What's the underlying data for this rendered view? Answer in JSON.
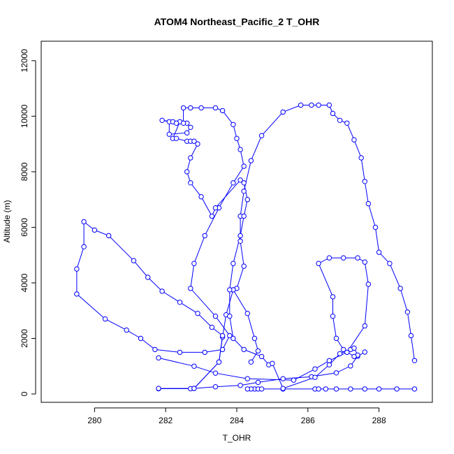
{
  "chart_data": {
    "type": "scatter",
    "title": "ATOM4 Northeast_Pacific_2 T_OHR",
    "xlabel": "T_OHR",
    "ylabel": "Altitude (m)",
    "xlim": [
      278.5,
      289.5
    ],
    "ylim": [
      -300,
      12700
    ],
    "x_ticks": [
      280,
      282,
      284,
      286,
      288
    ],
    "y_ticks": [
      0,
      2000,
      4000,
      6000,
      8000,
      10000,
      12000
    ],
    "marker": "open-circle",
    "connected": true,
    "grid": false,
    "color": "#0000ff",
    "series": [
      {
        "points": [
          [
            284.5,
            180
          ],
          [
            284.4,
            180
          ],
          [
            284.3,
            180
          ],
          [
            284.6,
            180
          ],
          [
            284.7,
            180
          ],
          [
            285.3,
            180
          ],
          [
            286.2,
            180
          ],
          [
            286.3,
            180
          ],
          [
            286.5,
            180
          ],
          [
            286.8,
            180
          ],
          [
            287.2,
            180
          ],
          [
            287.6,
            180
          ],
          [
            288.0,
            180
          ],
          [
            288.5,
            180
          ],
          [
            289.0,
            180
          ]
        ]
      },
      {
        "points": [
          [
            281.8,
            190
          ],
          [
            282.7,
            190
          ],
          [
            283.4,
            260
          ],
          [
            284.1,
            310
          ],
          [
            284.6,
            420
          ],
          [
            285.3,
            550
          ],
          [
            286.1,
            620
          ],
          [
            286.8,
            760
          ],
          [
            287.2,
            1010
          ],
          [
            287.4,
            1360
          ],
          [
            287.6,
            1510
          ]
        ]
      },
      {
        "points": [
          [
            289.0,
            1200
          ],
          [
            288.9,
            2100
          ],
          [
            288.8,
            2950
          ],
          [
            288.6,
            3800
          ],
          [
            288.3,
            4700
          ],
          [
            288.0,
            5100
          ],
          [
            287.9,
            6000
          ],
          [
            287.7,
            6850
          ],
          [
            287.6,
            7650
          ],
          [
            287.5,
            8500
          ],
          [
            287.3,
            9150
          ],
          [
            287.1,
            9750
          ],
          [
            286.9,
            9850
          ],
          [
            286.7,
            10100
          ],
          [
            286.6,
            10400
          ],
          [
            286.3,
            10400
          ],
          [
            286.1,
            10400
          ],
          [
            285.8,
            10400
          ],
          [
            285.3,
            10150
          ],
          [
            284.7,
            9300
          ],
          [
            284.4,
            8400
          ],
          [
            284.2,
            7300
          ],
          [
            284.1,
            6400
          ],
          [
            284.1,
            5500
          ],
          [
            284.2,
            4600
          ],
          [
            284.0,
            3800
          ],
          [
            283.9,
            3750
          ],
          [
            283.7,
            2850
          ],
          [
            283.6,
            2050
          ],
          [
            283.5,
            1150
          ],
          [
            282.8,
            200
          ],
          [
            281.8,
            200
          ]
        ]
      },
      {
        "points": [
          [
            283.9,
            3750
          ],
          [
            284.3,
            2900
          ],
          [
            284.5,
            2000
          ],
          [
            284.6,
            1550
          ],
          [
            284.4,
            1150
          ]
        ]
      }
    ]
  },
  "paths": [
    [
      [
        282.2,
        9200
      ],
      [
        282.4,
        9800
      ],
      [
        282.6,
        9750
      ],
      [
        282.7,
        9600
      ],
      [
        282.6,
        9400
      ],
      [
        282.1,
        9350
      ],
      [
        282.1,
        9800
      ],
      [
        281.9,
        9850
      ],
      [
        282.2,
        9800
      ],
      [
        282.3,
        9750
      ],
      [
        282.5,
        9750
      ],
      [
        282.5,
        10300
      ],
      [
        282.7,
        10300
      ],
      [
        283.0,
        10300
      ],
      [
        283.4,
        10300
      ],
      [
        283.6,
        10200
      ],
      [
        283.9,
        9700
      ],
      [
        284.0,
        9200
      ],
      [
        284.1,
        8800
      ],
      [
        284.2,
        8200
      ],
      [
        283.9,
        7600
      ],
      [
        283.5,
        6700
      ],
      [
        283.1,
        5700
      ],
      [
        282.8,
        4700
      ],
      [
        282.7,
        3800
      ],
      [
        283.4,
        2800
      ],
      [
        283.8,
        2100
      ],
      [
        283.6,
        1600
      ],
      [
        283.1,
        1500
      ],
      [
        282.4,
        1500
      ],
      [
        281.7,
        1600
      ],
      [
        281.3,
        2000
      ],
      [
        280.9,
        2300
      ],
      [
        280.3,
        2700
      ],
      [
        279.5,
        3600
      ],
      [
        279.5,
        4500
      ],
      [
        279.7,
        5300
      ],
      [
        279.7,
        6200
      ],
      [
        280.0,
        5900
      ],
      [
        280.4,
        5700
      ],
      [
        281.1,
        4800
      ],
      [
        281.5,
        4200
      ],
      [
        281.9,
        3700
      ],
      [
        282.4,
        3300
      ],
      [
        282.9,
        2900
      ],
      [
        283.3,
        2400
      ],
      [
        283.6,
        2100
      ],
      [
        283.5,
        1150
      ],
      [
        282.8,
        200
      ]
    ],
    [
      [
        282.3,
        9200
      ],
      [
        282.6,
        9100
      ],
      [
        282.7,
        9100
      ],
      [
        282.8,
        9100
      ],
      [
        282.9,
        9000
      ],
      [
        282.7,
        8500
      ],
      [
        282.6,
        8000
      ],
      [
        282.7,
        7600
      ],
      [
        283.0,
        7100
      ],
      [
        283.3,
        6400
      ],
      [
        283.4,
        6700
      ],
      [
        284.1,
        7700
      ],
      [
        284.2,
        7600
      ],
      [
        284.3,
        7000
      ],
      [
        284.2,
        6400
      ],
      [
        284.1,
        5700
      ],
      [
        283.9,
        4700
      ],
      [
        283.8,
        3750
      ],
      [
        283.8,
        2800
      ],
      [
        283.9,
        2000
      ],
      [
        284.2,
        1600
      ],
      [
        284.7,
        1350
      ],
      [
        284.9,
        1050
      ],
      [
        285.0,
        1100
      ],
      [
        285.3,
        200
      ],
      [
        286.2,
        600
      ],
      [
        286.6,
        1050
      ],
      [
        286.9,
        1450
      ],
      [
        287.2,
        1600
      ],
      [
        287.3,
        1650
      ],
      [
        287.4,
        1400
      ],
      [
        287.3,
        1350
      ],
      [
        287.0,
        1600
      ],
      [
        286.8,
        2000
      ],
      [
        286.7,
        2800
      ],
      [
        286.7,
        3500
      ],
      [
        286.3,
        4700
      ],
      [
        286.6,
        4900
      ],
      [
        287.0,
        4900
      ],
      [
        287.4,
        4900
      ],
      [
        287.6,
        4750
      ],
      [
        287.7,
        3950
      ],
      [
        287.6,
        2450
      ],
      [
        287.1,
        1500
      ],
      [
        286.6,
        1200
      ],
      [
        286.2,
        900
      ],
      [
        285.6,
        500
      ],
      [
        284.3,
        550
      ],
      [
        283.4,
        750
      ],
      [
        282.8,
        1000
      ],
      [
        281.8,
        1300
      ]
    ]
  ]
}
